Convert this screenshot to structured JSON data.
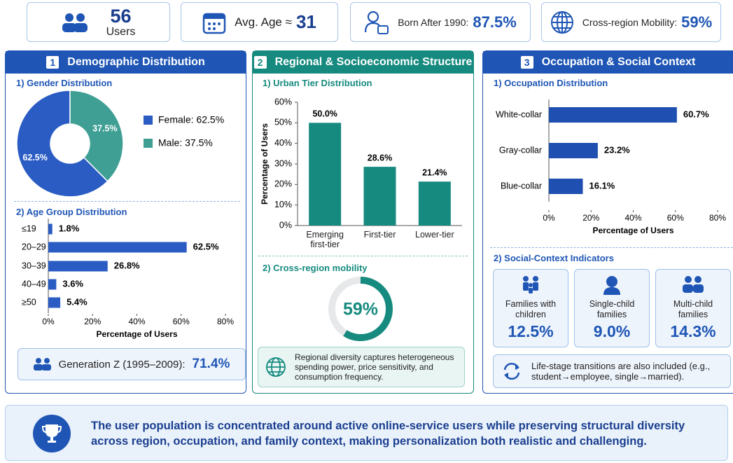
{
  "kpis": [
    {
      "value": 56,
      "label": "Users"
    },
    {
      "label": "Avg. Age ≈",
      "value": 31
    },
    {
      "label": "Born After 1990:",
      "value": "87.5%"
    },
    {
      "label": "Cross-region Mobility:",
      "value": "59%"
    }
  ],
  "panels": [
    {
      "number": "1",
      "title": "Demographic Distribution",
      "gender": {
        "type": "donut",
        "title": "1) Gender Distribution",
        "legend": [
          "Female: 62.5%",
          "Male: 37.5%"
        ],
        "values": [
          62.5,
          37.5
        ],
        "value_labels": [
          "62.5%",
          "37.5%"
        ],
        "colors": [
          "#2a5cc4",
          "#3f9f94"
        ]
      },
      "age": {
        "type": "hbar",
        "title": "2) Age Group Distribution",
        "categories": [
          "≤19",
          "20–29",
          "30–39",
          "40–49",
          "≥50"
        ],
        "values": [
          1.8,
          62.5,
          26.8,
          3.6,
          5.4
        ],
        "value_labels": [
          "1.8%",
          "62.5%",
          "26.8%",
          "3.6%",
          "5.4%"
        ],
        "color": "#2a5cc4",
        "xlim": [
          0,
          80
        ],
        "xticks": [
          {
            "value": 0,
            "label": "0%"
          },
          {
            "value": 20,
            "label": "20%"
          },
          {
            "value": 40,
            "label": "40%"
          },
          {
            "value": 60,
            "label": "60%"
          },
          {
            "value": 80,
            "label": "80%"
          }
        ],
        "xlabel": "Percentage of Users"
      },
      "highlight": {
        "label": "Generation Z (1995–2009):",
        "value": "71.4%"
      }
    },
    {
      "number": "2",
      "title": "Regional & Socioeconomic Structure",
      "urban": {
        "type": "bar",
        "title": "1) Urban Tier Distribution",
        "categories": [
          "Emerging first-tier",
          "First-tier",
          "Lower-tier"
        ],
        "values": [
          50.0,
          28.6,
          21.4
        ],
        "value_labels": [
          "50.0%",
          "28.6%",
          "21.4%"
        ],
        "color": "#168a7f",
        "ylim": [
          0,
          60
        ],
        "yticks": [
          {
            "value": 0,
            "label": "0%"
          },
          {
            "value": 10,
            "label": "10%"
          },
          {
            "value": 20,
            "label": "20%"
          },
          {
            "value": 30,
            "label": "30%"
          },
          {
            "value": 40,
            "label": "40%"
          },
          {
            "value": 50,
            "label": "50%"
          },
          {
            "value": 60,
            "label": "60%"
          }
        ],
        "ylabel": "Percentage of Users"
      },
      "mobility": {
        "type": "gauge",
        "title": "2) Cross-region mobility",
        "value": 59,
        "value_label": "59%",
        "max": 100,
        "color": "#168a7f"
      },
      "note": "Regional diversity captures heterogeneous spending power, price sensitivity, and consumption frequency."
    },
    {
      "number": "3",
      "title": "Occupation & Social Context",
      "occupation": {
        "type": "hbar",
        "title": "1) Occupation Distribution",
        "categories": [
          "White-collar",
          "Gray-collar",
          "Blue-collar"
        ],
        "values": [
          60.7,
          23.2,
          16.1
        ],
        "value_labels": [
          "60.7%",
          "23.2%",
          "16.1%"
        ],
        "color": "#1f4fb0",
        "xlim": [
          0,
          80
        ],
        "xticks": [
          {
            "value": 0,
            "label": "0%"
          },
          {
            "value": 20,
            "label": "20%"
          },
          {
            "value": 40,
            "label": "40%"
          },
          {
            "value": 60,
            "label": "60%"
          },
          {
            "value": 80,
            "label": "80%"
          }
        ],
        "xlabel": "Percentage of Users"
      },
      "indicators": {
        "title": "2) Social-Context Indicators",
        "items": [
          {
            "label": "Families with children",
            "value": "12.5%"
          },
          {
            "label": "Single-child families",
            "value": "9.0%"
          },
          {
            "label": "Multi-child families",
            "value": "14.3%"
          }
        ]
      },
      "note": "Life-stage transitions are also included (e.g., student→employee, single→married)."
    }
  ],
  "footer": "The user population is concentrated around active online-service users while preserving structural diversity across region, occupation, and family context, making personalization both realistic and challenging."
}
